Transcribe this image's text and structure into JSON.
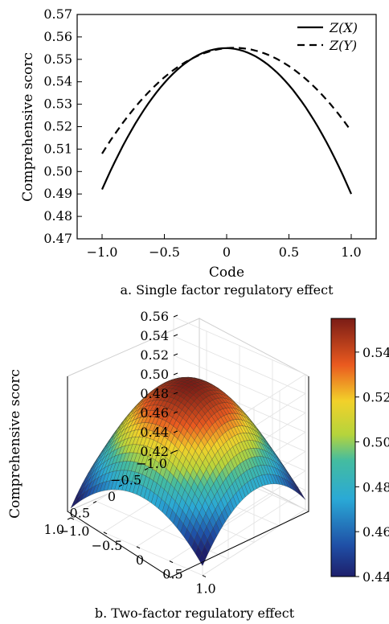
{
  "chart_data": [
    {
      "type": "line",
      "caption": "a. Single factor regulatory effect",
      "xlabel": "Code",
      "ylabel": "Comprehensive scorc",
      "xlim": [
        -1.2,
        1.2
      ],
      "ylim": [
        0.47,
        0.57
      ],
      "xticks": [
        -1.0,
        -0.5,
        0,
        0.5,
        1.0
      ],
      "xtick_labels": [
        "−1.0",
        "−0.5",
        "0",
        "0.5",
        "1.0"
      ],
      "yticks": [
        0.47,
        0.48,
        0.49,
        0.5,
        0.51,
        0.52,
        0.53,
        0.54,
        0.55,
        0.56,
        0.57
      ],
      "ytick_labels": [
        "0.47",
        "0.48",
        "0.49",
        "0.50",
        "0.51",
        "0.52",
        "0.53",
        "0.54",
        "0.55",
        "0.56",
        "0.57"
      ],
      "grid": false,
      "legend_position": "top-right",
      "series": [
        {
          "name": "Z(X)",
          "style": "solid",
          "color": "#000000",
          "x": [
            -1.0,
            -0.5,
            0,
            0.5,
            1.0
          ],
          "y": [
            0.492,
            0.539,
            0.555,
            0.539,
            0.49
          ]
        },
        {
          "name": "Z(Y)",
          "style": "dashed",
          "color": "#000000",
          "x": [
            -1.0,
            -0.5,
            0,
            0.5,
            1.0
          ],
          "y": [
            0.508,
            0.544,
            0.555,
            0.545,
            0.518
          ]
        }
      ]
    },
    {
      "type": "surface",
      "caption": "b. Two-factor regulatory effect",
      "zlabel": "Comprehensive scorc",
      "xticks": [
        -1.0,
        -0.5,
        0,
        0.5,
        1.0
      ],
      "xtick_labels": [
        "−1.0",
        "−0.5",
        "0",
        "0.5",
        "1.0"
      ],
      "yticks": [
        -1.0,
        -0.5,
        0,
        0.5,
        1.0
      ],
      "ytick_labels": [
        "−1.0",
        "−0.5",
        "0",
        "0.5",
        "1.0"
      ],
      "zticks": [
        0.42,
        0.44,
        0.46,
        0.48,
        0.5,
        0.52,
        0.54,
        0.56
      ],
      "ztick_labels": [
        "0.42",
        "0.44",
        "0.46",
        "0.48",
        "0.50",
        "0.52",
        "0.54",
        "0.56"
      ],
      "zlim": [
        0.42,
        0.56
      ],
      "surface_peak": {
        "x": 0,
        "y": 0,
        "z": 0.555
      },
      "surface_corner_min_z": 0.43,
      "colormap": "jet",
      "colorbar": {
        "range": [
          0.44,
          0.555
        ],
        "ticks": [
          0.44,
          0.46,
          0.48,
          0.5,
          0.52,
          0.54
        ],
        "tick_labels": [
          "0.44",
          "0.46",
          "0.48",
          "0.50",
          "0.52",
          "0.54"
        ]
      }
    }
  ]
}
